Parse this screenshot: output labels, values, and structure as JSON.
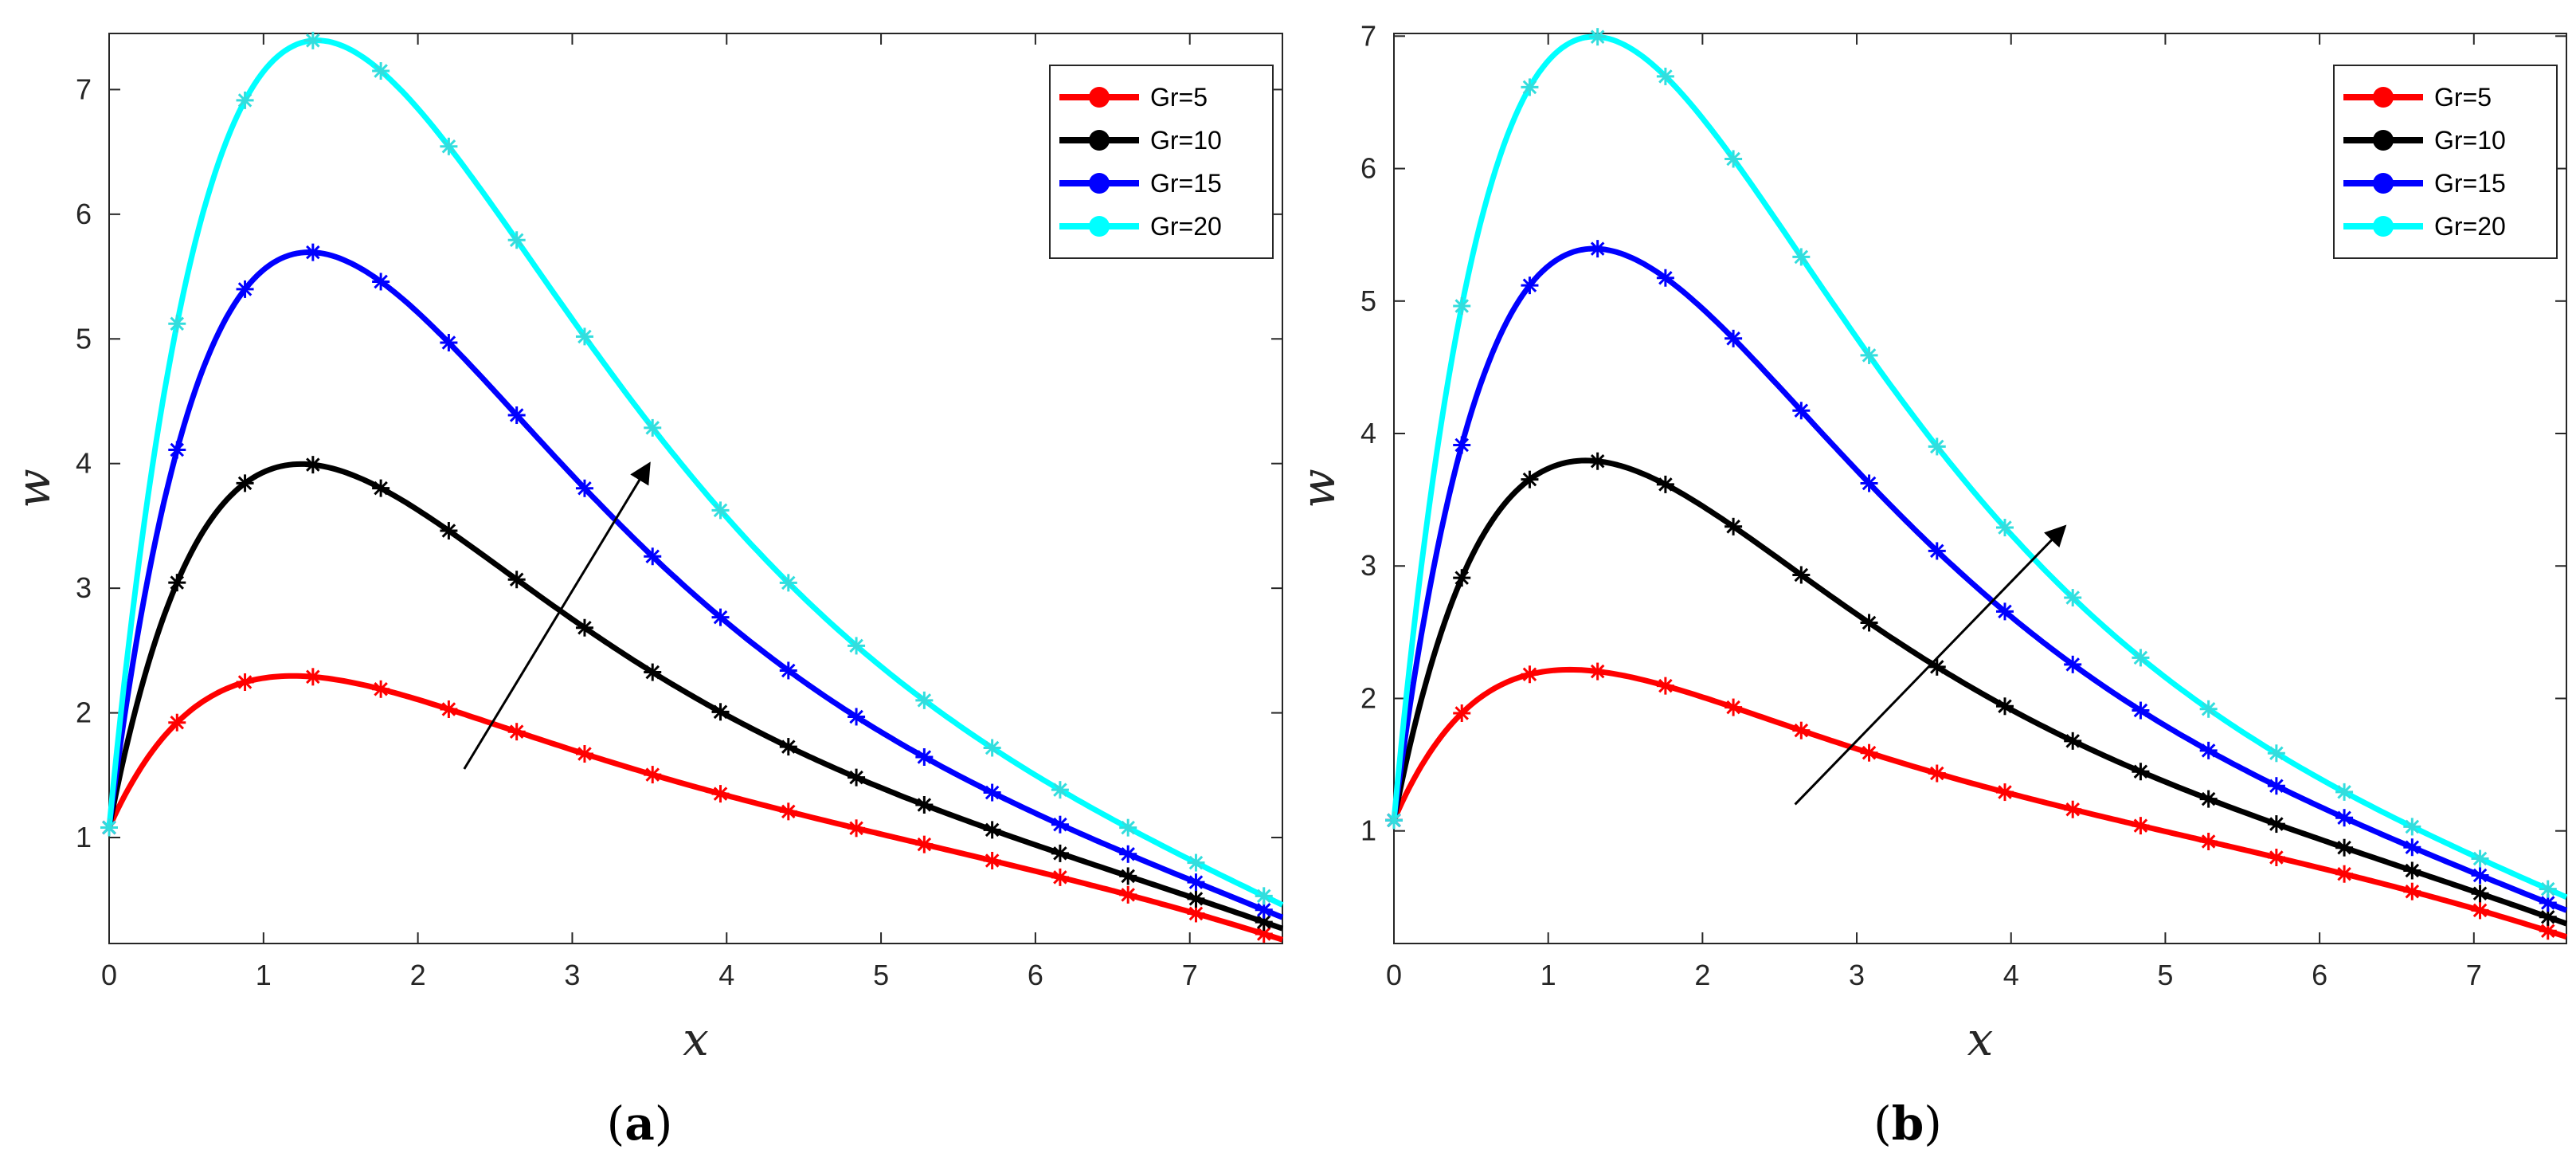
{
  "chart_data": [
    {
      "type": "line",
      "panel": "a",
      "caption_open": "(",
      "caption_letter": "a",
      "caption_close": ")",
      "xlabel": "x",
      "ylabel": "w",
      "xlim": [
        0,
        7.6
      ],
      "ylim": [
        0.15,
        7.45
      ],
      "xticks": [
        0,
        1,
        2,
        3,
        4,
        5,
        6,
        7
      ],
      "yticks": [
        1,
        2,
        3,
        4,
        5,
        6,
        7
      ],
      "legend_location": "top-right",
      "annotation": "arrow indicating increasing Gr",
      "arrow": {
        "from": [
          2.3,
          1.55
        ],
        "to": [
          3.5,
          4.0
        ]
      },
      "series": [
        {
          "name": "Gr=5",
          "color": "#ff0000",
          "peak_x": 1.2,
          "peak_y": 2.3,
          "end_y": 0.18
        },
        {
          "name": "Gr=10",
          "color": "#000000",
          "peak_x": 1.25,
          "peak_y": 4.0,
          "end_y": 0.27
        },
        {
          "name": "Gr=15",
          "color": "#0000ff",
          "peak_x": 1.3,
          "peak_y": 5.7,
          "end_y": 0.36
        },
        {
          "name": "Gr=20",
          "color": "#00ffff",
          "peak_x": 1.35,
          "peak_y": 7.4,
          "end_y": 0.46
        }
      ]
    },
    {
      "type": "line",
      "panel": "b",
      "caption_open": "(",
      "caption_letter": "b",
      "caption_close": ")",
      "xlabel": "x",
      "ylabel": "w",
      "xlim": [
        0,
        7.6
      ],
      "ylim": [
        0.15,
        7.02
      ],
      "xticks": [
        0,
        1,
        2,
        3,
        4,
        5,
        6,
        7
      ],
      "yticks": [
        1,
        2,
        3,
        4,
        5,
        6,
        7
      ],
      "legend_location": "top-right",
      "annotation": "arrow indicating increasing Gr",
      "arrow": {
        "from": [
          2.6,
          1.2
        ],
        "to": [
          4.35,
          3.3
        ]
      },
      "series": [
        {
          "name": "Gr=5",
          "color": "#ff0000",
          "peak_x": 1.15,
          "peak_y": 2.22,
          "end_y": 0.2
        },
        {
          "name": "Gr=10",
          "color": "#000000",
          "peak_x": 1.25,
          "peak_y": 3.8,
          "end_y": 0.3
        },
        {
          "name": "Gr=15",
          "color": "#0000ff",
          "peak_x": 1.3,
          "peak_y": 5.4,
          "end_y": 0.4
        },
        {
          "name": "Gr=20",
          "color": "#00ffff",
          "peak_x": 1.3,
          "peak_y": 7.0,
          "end_y": 0.5
        }
      ]
    }
  ]
}
